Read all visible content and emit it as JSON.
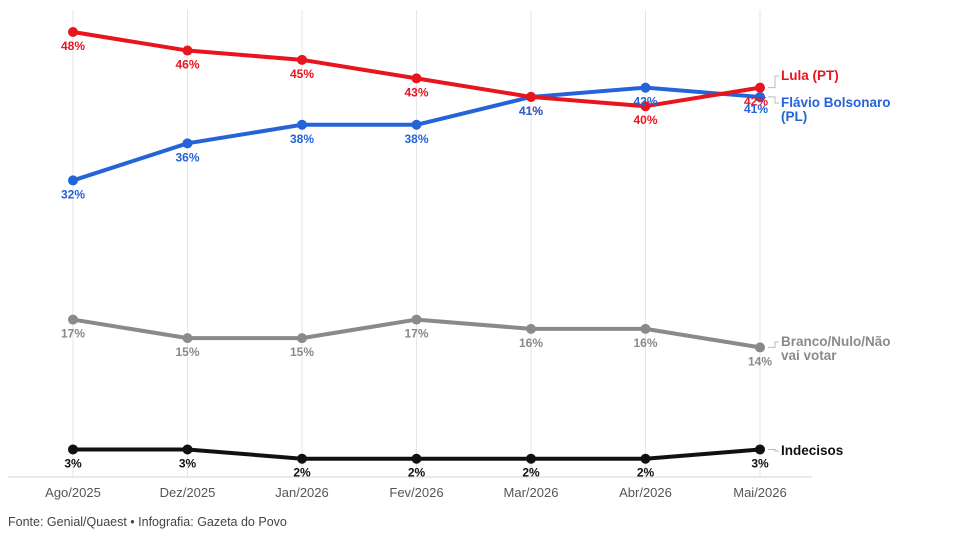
{
  "chart_data": {
    "type": "line",
    "categories": [
      "Ago/2025",
      "Dez/2025",
      "Jan/2026",
      "Fev/2026",
      "Mar/2026",
      "Abr/2026",
      "Mai/2026"
    ],
    "ylim": [
      1,
      48
    ],
    "grid": "vertical",
    "series": [
      {
        "name": "Lula (PT)",
        "color": "#e8141e",
        "values": [
          48,
          46,
          45,
          43,
          41,
          40,
          42
        ],
        "labels": [
          "48%",
          "46%",
          "45%",
          "43%",
          "41%",
          "40%",
          "42%"
        ]
      },
      {
        "name": "Flávio Bolsonaro (PL)",
        "name_lines": [
          "Flávio Bolsonaro",
          "(PL)"
        ],
        "color": "#2563d9",
        "values": [
          32,
          36,
          38,
          38,
          41,
          42,
          41
        ],
        "labels": [
          "32%",
          "36%",
          "38%",
          "38%",
          "41%",
          "42%",
          "41%"
        ]
      },
      {
        "name": "Branco/Nulo/Não vai votar",
        "name_lines": [
          "Branco/Nulo/Não",
          "vai votar"
        ],
        "color": "#8a8a8a",
        "values": [
          17,
          15,
          15,
          17,
          16,
          16,
          14
        ],
        "labels": [
          "17%",
          "15%",
          "15%",
          "17%",
          "16%",
          "16%",
          "14%"
        ]
      },
      {
        "name": "Indecisos",
        "color": "#111111",
        "values": [
          3,
          3,
          2,
          2,
          2,
          2,
          3
        ],
        "labels": [
          "3%",
          "3%",
          "2%",
          "2%",
          "2%",
          "2%",
          "3%"
        ]
      }
    ]
  },
  "footer": {
    "source": "Fonte: Genial/Quaest • Infografia: Gazeta do Povo"
  }
}
